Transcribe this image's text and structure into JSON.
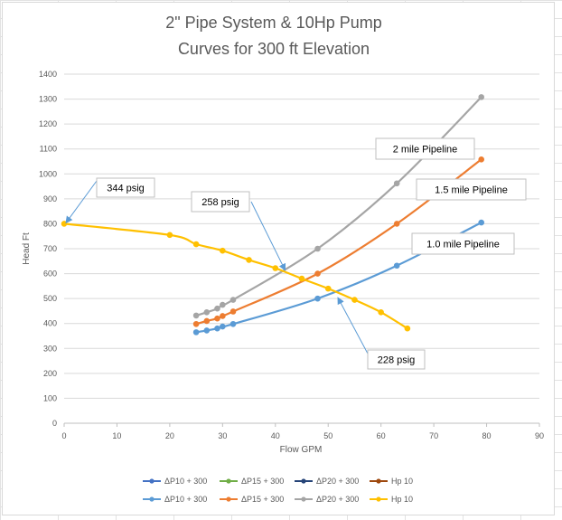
{
  "chart_data": {
    "type": "scatter",
    "title_lines": [
      "2\" Pipe System & 10Hp Pump",
      "Curves for 300 ft Elevation"
    ],
    "xlabel": "Flow GPM",
    "ylabel": "Head Ft",
    "xlim": [
      0,
      90
    ],
    "ylim": [
      0,
      1400
    ],
    "x_ticks": [
      0,
      10,
      20,
      30,
      40,
      50,
      60,
      70,
      80,
      90
    ],
    "y_ticks": [
      0,
      100,
      200,
      300,
      400,
      500,
      600,
      700,
      800,
      900,
      1000,
      1100,
      1200,
      1300,
      1400
    ],
    "grid": "horizontal",
    "legend_position": "bottom",
    "series": [
      {
        "name": "ΔP10 + 300",
        "color": "#5b9bd5",
        "marker": "circle",
        "x": [
          25,
          27,
          29,
          30,
          32,
          48,
          63,
          79
        ],
        "y": [
          365,
          372,
          380,
          388,
          398,
          500,
          632,
          805
        ]
      },
      {
        "name": "ΔP15 + 300",
        "color": "#ed7d31",
        "marker": "circle",
        "x": [
          25,
          27,
          29,
          30,
          32,
          48,
          63,
          79
        ],
        "y": [
          398,
          410,
          420,
          430,
          448,
          600,
          800,
          1058
        ]
      },
      {
        "name": "ΔP20 + 300",
        "color": "#a5a5a5",
        "marker": "circle",
        "x": [
          25,
          27,
          29,
          30,
          32,
          48,
          63,
          79
        ],
        "y": [
          432,
          445,
          460,
          475,
          495,
          700,
          962,
          1308
        ]
      },
      {
        "name": "Hp 10",
        "color": "#ffc000",
        "marker": "circle",
        "x": [
          0,
          20,
          25,
          30,
          35,
          40,
          45,
          50,
          55,
          60,
          65
        ],
        "y": [
          800,
          755,
          718,
          692,
          655,
          622,
          580,
          540,
          495,
          445,
          380
        ]
      }
    ],
    "legend_rows": [
      [
        {
          "name": "ΔP10 + 300",
          "color": "#4472c4"
        },
        {
          "name": "ΔP15 + 300",
          "color": "#70ad47"
        },
        {
          "name": "ΔP20 + 300",
          "color": "#264478"
        },
        {
          "name": "Hp 10",
          "color": "#9e480e"
        }
      ],
      [
        {
          "name": "ΔP10 + 300",
          "color": "#5b9bd5"
        },
        {
          "name": "ΔP15 + 300",
          "color": "#ed7d31"
        },
        {
          "name": "ΔP20 + 300",
          "color": "#a5a5a5"
        },
        {
          "name": "Hp 10",
          "color": "#ffc000"
        }
      ]
    ],
    "annotations": [
      {
        "id": "label-344",
        "text": "344 psig",
        "arrow_to": [
          0,
          800
        ]
      },
      {
        "id": "label-258",
        "text": "258 psig",
        "arrow_to": [
          41.5,
          610
        ]
      },
      {
        "id": "label-228",
        "text": "228 psig",
        "arrow_to": [
          51.5,
          500
        ]
      },
      {
        "id": "label-2mile",
        "text": "2 mile Pipeline"
      },
      {
        "id": "label-15mile",
        "text": "1.5 mile Pipeline"
      },
      {
        "id": "label-10mile",
        "text": "1.0 mile Pipeline"
      }
    ]
  }
}
